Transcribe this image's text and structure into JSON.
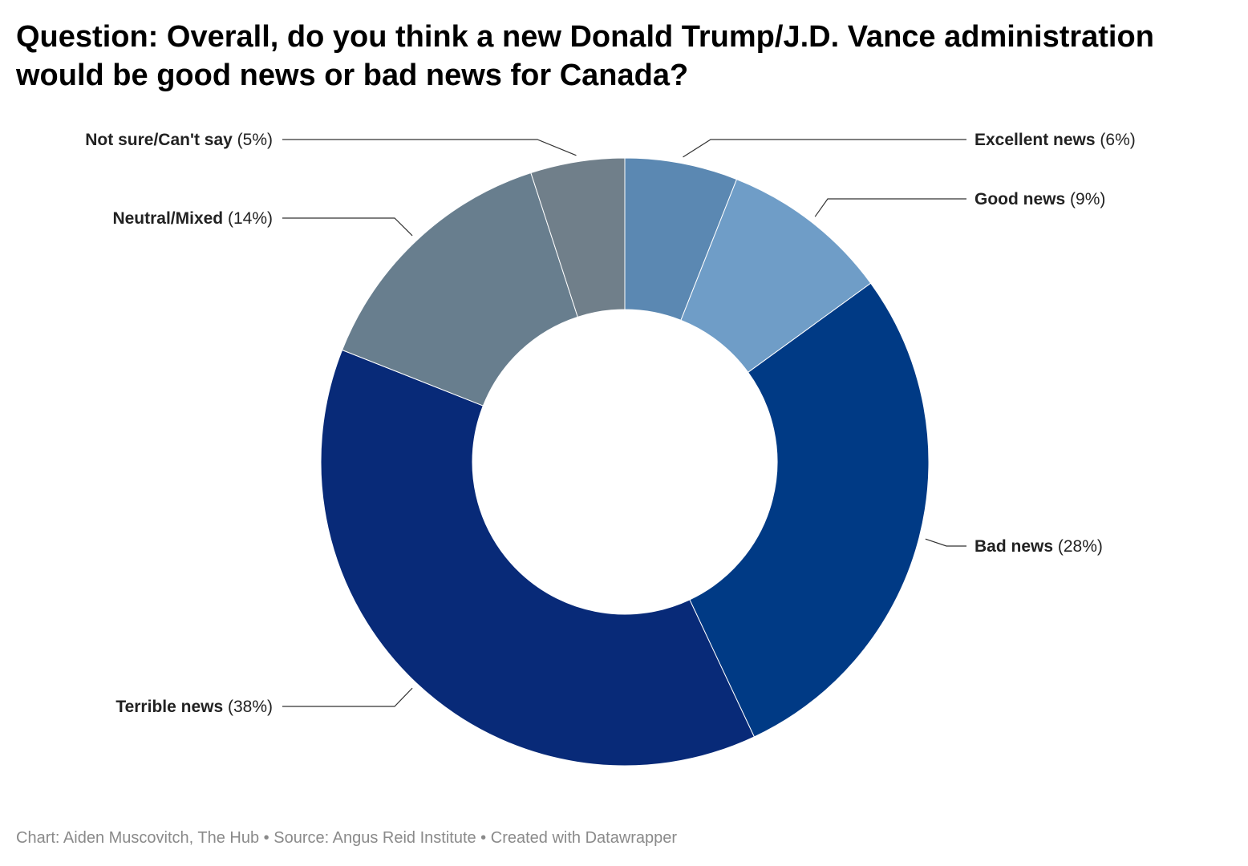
{
  "title": "Question: Overall, do you think a new Donald Trump/J.D. Vance administration would be good news or bad news for Canada?",
  "footer": {
    "credit": "Chart: Aiden Muscovitch, The Hub",
    "separator": " • ",
    "source": "Source: Angus Reid Institute",
    "tool": "Created with Datawrapper"
  },
  "chart_data": {
    "type": "pie",
    "variant": "donut",
    "title": "Question: Overall, do you think a new Donald Trump/J.D. Vance administration would be good news or bad news for Canada?",
    "legend": "none",
    "categories": [
      "Excellent news",
      "Good news",
      "Bad news",
      "Terrible news",
      "Neutral/Mixed",
      "Not sure/Can't say"
    ],
    "values": [
      6,
      9,
      28,
      38,
      14,
      5
    ],
    "value_labels": [
      "(6%)",
      "(9%)",
      "(28%)",
      "(38%)",
      "(14%)",
      "(5%)"
    ],
    "colors": [
      "#5b88b2",
      "#6f9dc7",
      "#003a85",
      "#082a78",
      "#687e8e",
      "#707f8a"
    ]
  }
}
